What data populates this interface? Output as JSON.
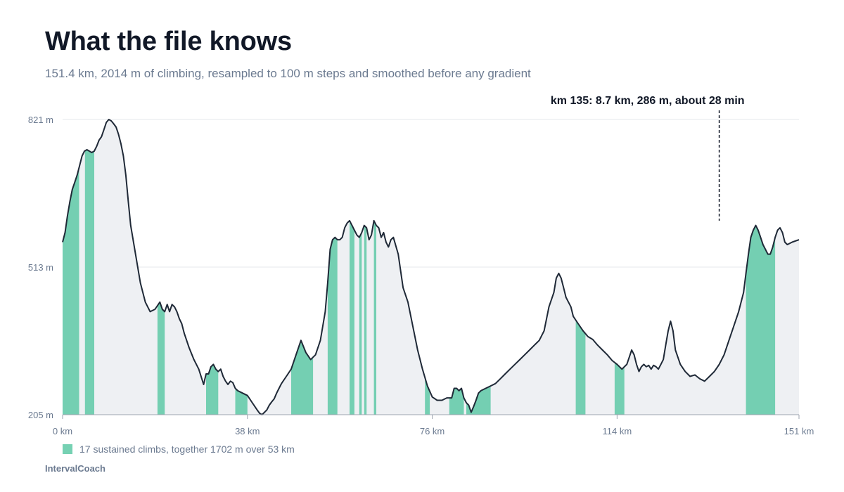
{
  "header": {
    "title": "What the file knows",
    "subtitle": "151.4 km, 2014 m of climbing, resampled to 100 m steps and smoothed before any gradient"
  },
  "legend": {
    "label": "17 sustained climbs, together 1702 m over 53 km"
  },
  "brand": "IntervalCoach",
  "colors": {
    "line": "#1f2937",
    "fill": "#eef0f3",
    "climb": "#5ec9a6",
    "grid": "#e5e7eb",
    "tick_text": "#6b7a90"
  },
  "chart_data": {
    "type": "area",
    "xlim": [
      0,
      151.4
    ],
    "ylim": [
      205,
      821
    ],
    "x_ticks": [
      {
        "value": 0,
        "label": "0 km"
      },
      {
        "value": 38,
        "label": "38 km"
      },
      {
        "value": 76,
        "label": "76 km"
      },
      {
        "value": 114,
        "label": "114 km"
      },
      {
        "value": 151.4,
        "label": "151 km"
      }
    ],
    "y_ticks": [
      {
        "value": 205,
        "label": "205 m"
      },
      {
        "value": 513,
        "label": "513 m"
      },
      {
        "value": 821,
        "label": "821 m"
      }
    ],
    "grid": true,
    "profile": {
      "x": [
        0,
        0.5,
        1,
        1.5,
        2,
        2.5,
        3,
        3.5,
        4,
        4.5,
        5,
        5.5,
        6,
        6.5,
        7,
        7.5,
        8,
        8.5,
        9,
        9.5,
        10,
        10.5,
        11,
        11.5,
        12,
        12.5,
        13,
        13.5,
        14,
        15,
        16,
        17,
        18,
        19,
        20,
        20.5,
        21,
        21.5,
        22,
        22.5,
        23,
        23.5,
        24,
        24.5,
        25,
        26,
        27,
        28,
        29,
        29.5,
        30,
        30.5,
        31,
        31.5,
        32,
        32.5,
        33,
        33.5,
        34,
        34.5,
        35,
        35.5,
        36,
        37,
        38,
        39,
        40,
        40.5,
        41,
        41.5,
        42,
        42.5,
        43,
        43.5,
        44,
        44.5,
        45,
        46,
        47,
        48,
        49,
        50,
        51,
        52,
        53,
        54,
        54.5,
        55,
        55.5,
        56,
        56.5,
        57,
        57.5,
        58,
        58.5,
        59,
        59.5,
        60,
        60.5,
        61,
        61.5,
        62,
        62.5,
        63,
        63.5,
        64,
        64.5,
        65,
        65.5,
        66,
        66.5,
        67,
        67.5,
        68,
        69,
        70,
        71,
        72,
        73,
        74,
        75,
        76,
        77,
        78,
        79,
        80,
        80.5,
        81,
        81.5,
        82,
        82.5,
        83,
        83.5,
        84,
        84.5,
        85,
        85.5,
        86,
        87,
        88,
        89,
        90,
        91,
        92,
        93,
        94,
        95,
        96,
        97,
        98,
        99,
        100,
        101,
        101.5,
        102,
        102.5,
        103,
        103.5,
        104,
        104.5,
        105,
        106,
        107,
        108,
        109,
        110,
        111,
        112,
        113,
        114,
        115,
        116,
        116.5,
        117,
        117.5,
        118,
        118.5,
        119,
        119.5,
        120,
        120.5,
        121,
        121.5,
        122,
        122.5,
        123,
        123.5,
        124,
        124.5,
        125,
        125.5,
        126,
        127,
        128,
        129,
        130,
        131,
        132,
        133,
        134,
        135,
        136,
        137,
        138,
        139,
        140,
        140.5,
        141,
        141.5,
        142,
        142.5,
        143,
        143.5,
        144,
        144.5,
        145,
        145.5,
        146,
        146.5,
        147,
        147.5,
        148,
        148.5,
        149,
        150,
        151.4
      ],
      "y": [
        565,
        585,
        620,
        650,
        675,
        690,
        705,
        725,
        745,
        755,
        758,
        755,
        752,
        755,
        765,
        778,
        785,
        800,
        815,
        821,
        818,
        812,
        805,
        790,
        770,
        745,
        705,
        650,
        600,
        540,
        480,
        440,
        420,
        425,
        440,
        425,
        420,
        435,
        420,
        435,
        430,
        420,
        405,
        395,
        375,
        345,
        320,
        300,
        268,
        290,
        290,
        305,
        310,
        300,
        295,
        300,
        285,
        275,
        268,
        275,
        272,
        260,
        255,
        250,
        245,
        230,
        215,
        208,
        205,
        210,
        215,
        225,
        232,
        238,
        250,
        260,
        270,
        285,
        300,
        330,
        360,
        335,
        320,
        330,
        360,
        420,
        480,
        550,
        570,
        575,
        570,
        570,
        575,
        595,
        605,
        610,
        600,
        590,
        580,
        575,
        585,
        600,
        595,
        570,
        580,
        610,
        600,
        595,
        575,
        585,
        565,
        555,
        570,
        575,
        540,
        470,
        440,
        390,
        340,
        300,
        265,
        242,
        235,
        235,
        240,
        240,
        260,
        260,
        255,
        260,
        240,
        230,
        225,
        210,
        222,
        235,
        250,
        255,
        260,
        265,
        270,
        280,
        290,
        300,
        310,
        320,
        330,
        340,
        350,
        360,
        380,
        430,
        460,
        490,
        500,
        490,
        470,
        450,
        440,
        430,
        410,
        395,
        380,
        368,
        362,
        350,
        340,
        330,
        318,
        310,
        300,
        310,
        325,
        340,
        330,
        310,
        295,
        305,
        310,
        305,
        308,
        300,
        308,
        305,
        300,
        310,
        320,
        350,
        380,
        400,
        380,
        340,
        310,
        295,
        285,
        288,
        280,
        275,
        285,
        295,
        310,
        330,
        360,
        390,
        420,
        460,
        500,
        540,
        575,
        590,
        600,
        590,
        575,
        560,
        550,
        540,
        540,
        555,
        575,
        590,
        595,
        585,
        565,
        560,
        565,
        570
      ]
    },
    "climbs": [
      {
        "start": 0,
        "end": 3.4
      },
      {
        "start": 4.6,
        "end": 6.5
      },
      {
        "start": 19.5,
        "end": 21
      },
      {
        "start": 29.5,
        "end": 32
      },
      {
        "start": 35.5,
        "end": 38
      },
      {
        "start": 47,
        "end": 51.5
      },
      {
        "start": 54.5,
        "end": 56.5
      },
      {
        "start": 59,
        "end": 60
      },
      {
        "start": 61,
        "end": 61.5
      },
      {
        "start": 62,
        "end": 62.5
      },
      {
        "start": 64,
        "end": 64.5
      },
      {
        "start": 74.5,
        "end": 75.5
      },
      {
        "start": 79.5,
        "end": 82.5
      },
      {
        "start": 83,
        "end": 88
      },
      {
        "start": 105.5,
        "end": 107.5
      },
      {
        "start": 113.5,
        "end": 115.5
      },
      {
        "start": 140.5,
        "end": 146.5
      }
    ],
    "annotation": {
      "label": "km 135: 8.7 km, 286 m, about 28 min",
      "x": 135
    }
  }
}
